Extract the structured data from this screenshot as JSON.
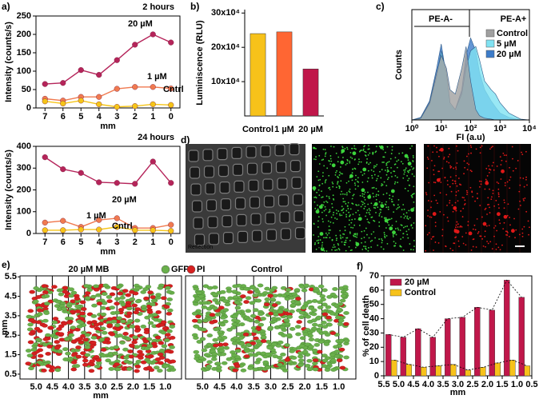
{
  "panel_labels": [
    "a)",
    "b)",
    "c)",
    "d)",
    "e)",
    "f)"
  ],
  "images": [
    "Reflection",
    "GFP",
    "PI"
  ],
  "chart_data": [
    {
      "type": "line",
      "title": "2 hours",
      "x_label": "mm",
      "y_label": "Intensity (counts/s)",
      "categories": [
        "7",
        "6",
        "5",
        "4",
        "3",
        "2",
        "1",
        "0"
      ],
      "ylim": [
        0,
        250
      ],
      "yticks": [
        0,
        50,
        100,
        150,
        200,
        250
      ],
      "series": [
        {
          "name": "20 µM",
          "color": "#b5245a",
          "values": [
            65,
            68,
            103,
            90,
            130,
            172,
            200,
            178
          ]
        },
        {
          "name": "1 µM",
          "color": "#f07a50",
          "values": [
            25,
            20,
            30,
            30,
            52,
            57,
            57,
            53
          ]
        },
        {
          "name": "Cntrl",
          "color": "#f5c518",
          "values": [
            18,
            12,
            20,
            10,
            3,
            5,
            10,
            8
          ]
        }
      ]
    },
    {
      "type": "line",
      "title": "24 hours",
      "x_label": "mm",
      "y_label": "Intensity (counts/s)",
      "categories": [
        "7",
        "6",
        "5",
        "4",
        "3",
        "2",
        "1",
        "0"
      ],
      "ylim": [
        0,
        400
      ],
      "yticks": [
        0,
        100,
        200,
        300,
        400
      ],
      "series": [
        {
          "name": "20 µM",
          "color": "#b5245a",
          "values": [
            350,
            295,
            278,
            235,
            232,
            228,
            330,
            232
          ]
        },
        {
          "name": "1 µM",
          "color": "#f07a50",
          "values": [
            50,
            58,
            30,
            62,
            70,
            25,
            25,
            40
          ]
        },
        {
          "name": "Cntrl",
          "color": "#f5c518",
          "values": [
            15,
            15,
            18,
            18,
            30,
            15,
            15,
            12
          ]
        }
      ]
    },
    {
      "type": "bar",
      "y_label": "Luminiscence (RLU)",
      "categories": [
        "Control",
        "1 µM",
        "20 µM"
      ],
      "values": [
        240000,
        245000,
        137000
      ],
      "colors": [
        "#f7c21a",
        "#ff6633",
        "#c0174a"
      ],
      "ylim": [
        0,
        310000
      ],
      "yticks": [
        {
          "value": 100000,
          "label": "10x10⁴"
        },
        {
          "value": 200000,
          "label": "20x10⁴"
        },
        {
          "value": 300000,
          "label": "30x10⁴"
        }
      ]
    },
    {
      "type": "density",
      "x_label": "FI (a.u)",
      "y_label": "Counts",
      "xscale": "log",
      "annotations": [
        "PE-A-",
        "PE-A+"
      ],
      "xlim": [
        1,
        10000
      ],
      "xticks": [
        {
          "value": 1,
          "label": "10⁰"
        },
        {
          "value": 10,
          "label": "10¹"
        },
        {
          "value": 100,
          "label": "10²"
        },
        {
          "value": 1000,
          "label": "10³"
        },
        {
          "value": 10000,
          "label": "10⁴"
        }
      ],
      "ylim": [
        0,
        100
      ],
      "x": [
        1,
        2,
        4,
        7,
        10,
        15,
        20,
        30,
        50,
        70,
        100,
        150,
        200,
        300,
        500,
        700,
        1000,
        2000,
        5000,
        10000
      ],
      "series": [
        {
          "name": "Control",
          "color": "#a0a0a0",
          "values": [
            0,
            2,
            20,
            55,
            75,
            60,
            35,
            30,
            60,
            85,
            45,
            12,
            5,
            2,
            1,
            0,
            0,
            0,
            0,
            0
          ]
        },
        {
          "name": "5 µM",
          "color": "#80e2f2",
          "values": [
            0,
            2,
            18,
            50,
            80,
            55,
            20,
            12,
            30,
            60,
            80,
            85,
            70,
            45,
            35,
            30,
            20,
            8,
            1,
            0
          ]
        },
        {
          "name": "20 µM",
          "color": "#3d7cc9",
          "values": [
            0,
            3,
            22,
            60,
            88,
            50,
            18,
            12,
            35,
            75,
            95,
            80,
            55,
            35,
            22,
            15,
            8,
            3,
            0,
            0
          ]
        }
      ]
    },
    {
      "type": "scatter",
      "titles": [
        "20 µM MB",
        "Control"
      ],
      "x_label": "mm",
      "y_label": "mm",
      "legend": [
        "GFP",
        "PI"
      ],
      "colors": [
        "#6ab04c",
        "#d62020"
      ],
      "xlim": [
        5.5,
        0.5
      ],
      "xticks": [
        {
          "value": 5,
          "label": "5.0"
        },
        4.5,
        {
          "value": 4,
          "label": "4.0"
        },
        3.5,
        {
          "value": 3,
          "label": "3.0"
        },
        2.5,
        {
          "value": 2,
          "label": "2.0"
        },
        1.5,
        {
          "value": 1,
          "label": "1.0"
        }
      ],
      "ylim": [
        0.25,
        5.55
      ],
      "yticks": [
        0.5,
        1.5,
        2.5,
        3.5,
        4.5,
        5.5
      ]
    },
    {
      "type": "grouped-bar",
      "x_label": "mm",
      "y_label": "% of cell death",
      "x": [
        5.25,
        4.75,
        4.25,
        3.75,
        3.25,
        2.75,
        2.25,
        1.75,
        1.25,
        0.75
      ],
      "xlim": [
        5.5,
        0.5
      ],
      "xticks": [
        5.5,
        {
          "value": 5,
          "label": "5.0"
        },
        4.5,
        {
          "value": 4,
          "label": "4.0"
        },
        3.5,
        {
          "value": 3,
          "label": "3.0"
        },
        2.5,
        {
          "value": 2,
          "label": "2.0"
        },
        1.5,
        {
          "value": 1,
          "label": "1.0"
        },
        0.5
      ],
      "ylim": [
        0,
        70
      ],
      "yticks": [
        0,
        10,
        20,
        30,
        40,
        50,
        60,
        70
      ],
      "series": [
        {
          "name": "20 µM",
          "color": "#c0174a",
          "values": [
            29,
            27,
            33,
            27,
            40,
            41,
            48,
            46,
            67,
            55
          ]
        },
        {
          "name": "Control",
          "color": "#f7c21a",
          "values": [
            11,
            8,
            6,
            7,
            8,
            4,
            6,
            9,
            11,
            7
          ]
        }
      ]
    }
  ]
}
